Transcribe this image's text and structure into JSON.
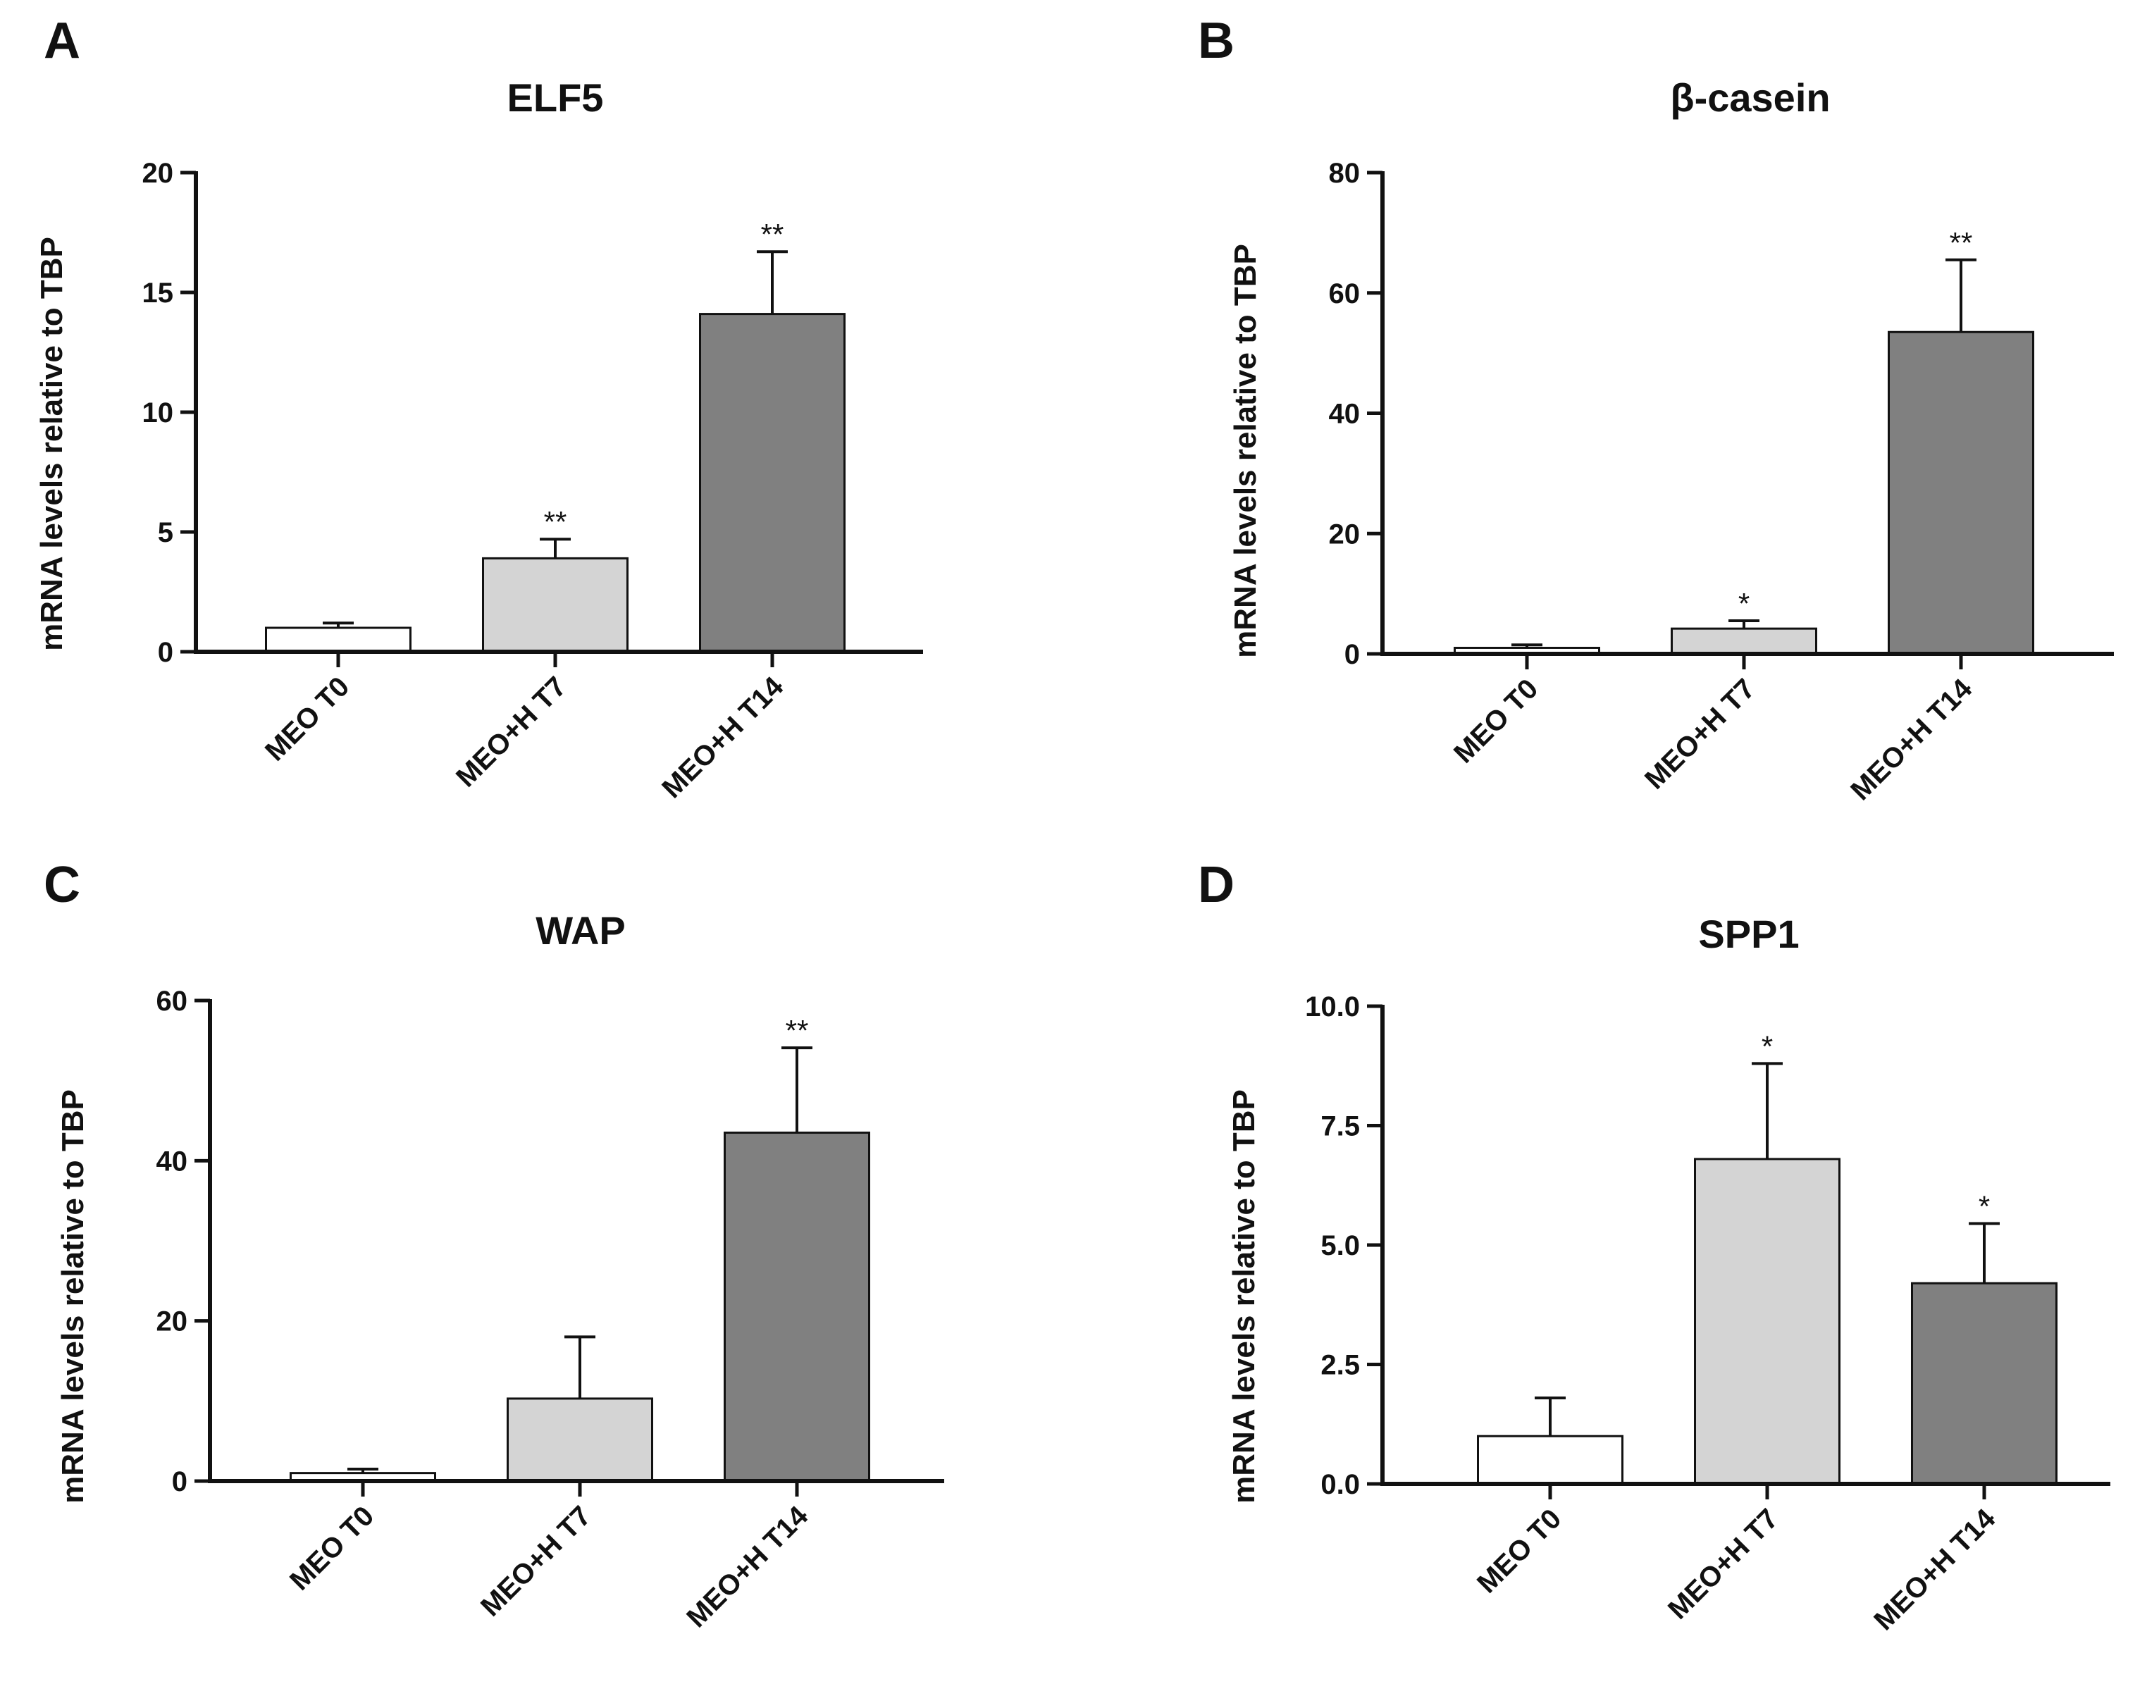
{
  "chart_data": [
    {
      "panel": "A",
      "type": "bar",
      "title": "ELF5",
      "ylabel": "mRNA levels relative to TBP",
      "xlabel": "",
      "categories": [
        "MEO T0",
        "MEO+H T7",
        "MEO+H T14"
      ],
      "values": [
        1.0,
        3.9,
        14.1
      ],
      "errors": [
        0.2,
        0.8,
        2.6
      ],
      "significance": [
        "",
        "**",
        "**"
      ],
      "bar_colors": [
        "#ffffff",
        "#d4d4d4",
        "#808080"
      ],
      "ylim": [
        0,
        20
      ],
      "yticks": [
        0,
        5,
        10,
        15,
        20
      ],
      "ytick_labels": [
        "0",
        "5",
        "10",
        "15",
        "20"
      ]
    },
    {
      "panel": "B",
      "type": "bar",
      "title": "β-casein",
      "ylabel": "mRNA levels relative to TBP",
      "xlabel": "",
      "categories": [
        "MEO T0",
        "MEO+H T7",
        "MEO+H T14"
      ],
      "values": [
        1.0,
        4.2,
        53.5
      ],
      "errors": [
        0.5,
        1.3,
        12.0
      ],
      "significance": [
        "",
        "*",
        "**"
      ],
      "bar_colors": [
        "#ffffff",
        "#d4d4d4",
        "#808080"
      ],
      "ylim": [
        0,
        80
      ],
      "yticks": [
        0,
        20,
        40,
        60,
        80
      ],
      "ytick_labels": [
        "0",
        "20",
        "40",
        "60",
        "80"
      ]
    },
    {
      "panel": "C",
      "type": "bar",
      "title": "WAP",
      "ylabel": "mRNA levels relative to TBP",
      "xlabel": "",
      "categories": [
        "MEO T0",
        "MEO+H T7",
        "MEO+H T14"
      ],
      "values": [
        1.0,
        10.3,
        43.5
      ],
      "errors": [
        0.5,
        7.7,
        10.6
      ],
      "significance": [
        "",
        "",
        "**"
      ],
      "bar_colors": [
        "#ffffff",
        "#d4d4d4",
        "#808080"
      ],
      "ylim": [
        0,
        60
      ],
      "yticks": [
        0,
        20,
        40,
        60
      ],
      "ytick_labels": [
        "0",
        "20",
        "40",
        "60"
      ]
    },
    {
      "panel": "D",
      "type": "bar",
      "title": "SPP1",
      "ylabel": "mRNA levels relative to TBP",
      "xlabel": "",
      "categories": [
        "MEO T0",
        "MEO+H T7",
        "MEO+H T14"
      ],
      "values": [
        1.0,
        6.8,
        4.2
      ],
      "errors": [
        0.8,
        2.0,
        1.25
      ],
      "significance": [
        "",
        "*",
        "*"
      ],
      "bar_colors": [
        "#ffffff",
        "#d4d4d4",
        "#808080"
      ],
      "ylim": [
        0,
        10
      ],
      "yticks": [
        0,
        2.5,
        5,
        7.5,
        10
      ],
      "ytick_labels": [
        "0.0",
        "2.5",
        "5.0",
        "7.5",
        "10.0"
      ]
    }
  ]
}
